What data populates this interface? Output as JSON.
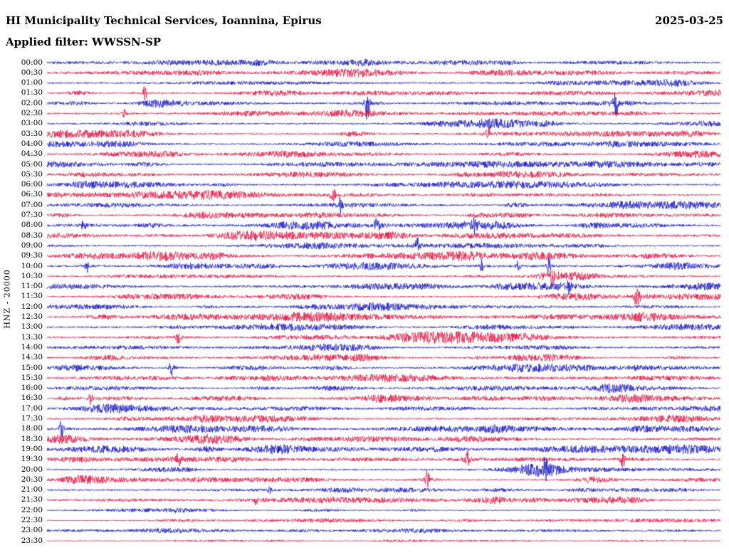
{
  "header": {
    "title": "HI Municipality Technical Services, Ioannina, Epirus",
    "date": "2025-03-25",
    "filter_label": "Applied filter: WWSSN-SP"
  },
  "axis": {
    "channel_label": "HNZ - 20000"
  },
  "chart_data": {
    "type": "line",
    "subtype": "helicorder-seismogram",
    "title": "HI Municipality Technical Services, Ioannina, Epirus",
    "date": "2025-03-25",
    "filter": "WWSSN-SP",
    "channel": "HNZ",
    "gain": "20000",
    "rows": 48,
    "minutes_per_row": 30,
    "row_labels": [
      "00:00",
      "00:30",
      "01:00",
      "01:30",
      "02:00",
      "02:30",
      "03:00",
      "03:30",
      "04:00",
      "04:30",
      "05:00",
      "05:30",
      "06:00",
      "06:30",
      "07:00",
      "07:30",
      "08:00",
      "08:30",
      "09:00",
      "09:30",
      "10:00",
      "10:30",
      "11:00",
      "11:30",
      "12:00",
      "12:30",
      "13:00",
      "13:30",
      "14:00",
      "14:30",
      "15:00",
      "15:30",
      "16:00",
      "16:30",
      "17:00",
      "17:30",
      "18:00",
      "18:30",
      "19:00",
      "19:30",
      "20:00",
      "20:30",
      "21:00",
      "21:30",
      "22:00",
      "22:30",
      "23:00",
      "23:30"
    ],
    "colors": [
      "#0000bb",
      "#dd0033"
    ],
    "legend": "even rows blue, odd rows red, 30 minutes per row",
    "row_noise": {
      "11": 1.15,
      "19": 1.1,
      "24": 0.7,
      "25": 1.1,
      "38": 1.25,
      "39": 1.2,
      "44": 0.6,
      "45": 0.55,
      "46": 0.5,
      "47": 0.5
    },
    "events": [
      {
        "row": 3,
        "x": 0.145,
        "amp": 9,
        "w": 2
      },
      {
        "row": 4,
        "x": 0.475,
        "amp": 22,
        "w": 2.2
      },
      {
        "row": 4,
        "x": 0.845,
        "amp": 18,
        "w": 2
      },
      {
        "row": 5,
        "x": 0.115,
        "amp": 5,
        "w": 2
      },
      {
        "row": 7,
        "x": 0.655,
        "amp": 10,
        "w": 2
      },
      {
        "row": 13,
        "x": 0.425,
        "amp": 11,
        "w": 2.5
      },
      {
        "row": 14,
        "x": 0.435,
        "amp": 10,
        "w": 2
      },
      {
        "row": 16,
        "x": 0.055,
        "amp": 10,
        "w": 2
      },
      {
        "row": 16,
        "x": 0.49,
        "amp": 11,
        "w": 2.5
      },
      {
        "row": 16,
        "x": 0.635,
        "amp": 11,
        "w": 2
      },
      {
        "row": 18,
        "x": 0.55,
        "amp": 10,
        "w": 2
      },
      {
        "row": 20,
        "x": 0.06,
        "amp": 8,
        "w": 2
      },
      {
        "row": 20,
        "x": 0.645,
        "amp": 10,
        "w": 2
      },
      {
        "row": 20,
        "x": 0.7,
        "amp": 8,
        "w": 2
      },
      {
        "row": 20,
        "x": 0.745,
        "amp": 11,
        "w": 2
      },
      {
        "row": 21,
        "x": 0.75,
        "amp": 13,
        "w": 2.5
      },
      {
        "row": 22,
        "x": 0.775,
        "amp": 11,
        "w": 2
      },
      {
        "row": 23,
        "x": 0.875,
        "amp": 16,
        "w": 3
      },
      {
        "row": 27,
        "x": 0.195,
        "amp": 10,
        "w": 2
      },
      {
        "row": 30,
        "x": 0.185,
        "amp": 11,
        "w": 2
      },
      {
        "row": 33,
        "x": 0.065,
        "amp": 8,
        "w": 2
      },
      {
        "row": 36,
        "x": 0.022,
        "amp": 13,
        "w": 2.5
      },
      {
        "row": 39,
        "x": 0.195,
        "amp": 9,
        "w": 2
      },
      {
        "row": 39,
        "x": 0.625,
        "amp": 11,
        "w": 2.5
      },
      {
        "row": 39,
        "x": 0.855,
        "amp": 11,
        "w": 2
      },
      {
        "row": 40,
        "x": 0.74,
        "amp": 11,
        "w": 2.5
      },
      {
        "row": 41,
        "x": 0.565,
        "amp": 13,
        "w": 2
      },
      {
        "row": 42,
        "x": 0.33,
        "amp": 6,
        "w": 2
      },
      {
        "row": 43,
        "x": 0.31,
        "amp": 6,
        "w": 2
      }
    ]
  }
}
